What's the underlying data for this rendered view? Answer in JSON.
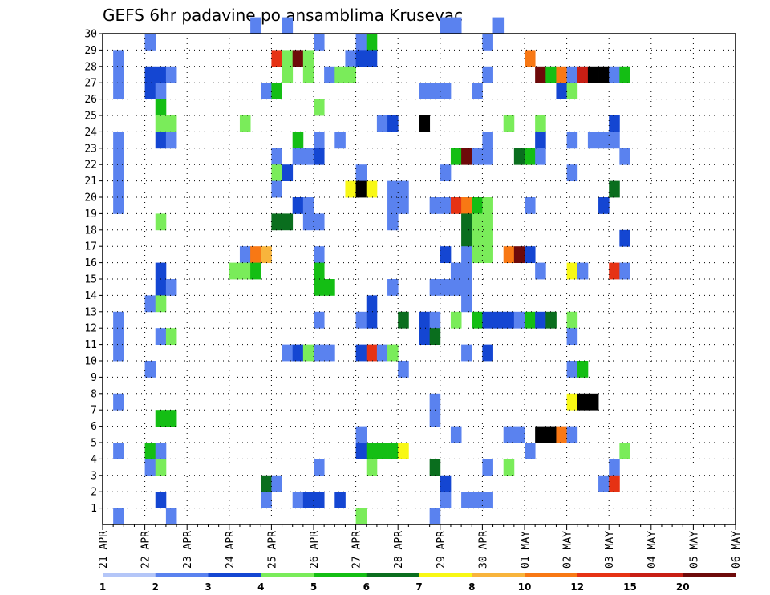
{
  "chart_data": {
    "type": "heatmap",
    "title": "GEFS 6hr padavine po ansamblima Krusevac",
    "x_tick_labels": [
      "21 APR",
      "22 APR",
      "23 APR",
      "24 APR",
      "25 APR",
      "26 APR",
      "27 APR",
      "28 APR",
      "29 APR",
      "30 APR",
      "01 MAY",
      "02 MAY",
      "03 MAY",
      "04 MAY",
      "05 MAY",
      "06 MAY"
    ],
    "y_tick_labels": [
      "1",
      "2",
      "3",
      "4",
      "5",
      "6",
      "7",
      "8",
      "9",
      "10",
      "11",
      "12",
      "13",
      "14",
      "15",
      "16",
      "17",
      "18",
      "19",
      "20",
      "21",
      "22",
      "23",
      "24",
      "25",
      "26",
      "27",
      "28",
      "29",
      "30"
    ],
    "y_range": [
      0,
      30
    ],
    "steps_per_day": 4,
    "grid": true,
    "legend": {
      "placement": "bottom",
      "levels": [
        "1",
        "2",
        "3",
        "4",
        "5",
        "6",
        "7",
        "8",
        "10",
        "12",
        "15",
        "20"
      ],
      "colors": [
        "#b4c6f8",
        "#5a82ef",
        "#1446d2",
        "#7aec5a",
        "#14be14",
        "#0a6e1e",
        "#f8f814",
        "#f8b43c",
        "#f87814",
        "#e63214",
        "#c81e14",
        "#6e0a0a"
      ]
    },
    "cells": [
      [
        1,
        20,
        1
      ],
      [
        1,
        22,
        1
      ],
      [
        1,
        23,
        1
      ],
      [
        1,
        26,
        1
      ],
      [
        1,
        27,
        1
      ],
      [
        1,
        28,
        1
      ],
      [
        1,
        19,
        1
      ],
      [
        1,
        21,
        1
      ],
      [
        1,
        10,
        1
      ],
      [
        1,
        11,
        1
      ],
      [
        1,
        12,
        1
      ],
      [
        1,
        7,
        1
      ],
      [
        1,
        4,
        1
      ],
      [
        1,
        0,
        1
      ],
      [
        4,
        29,
        1
      ],
      [
        4,
        27,
        2
      ],
      [
        4,
        26,
        2
      ],
      [
        4,
        13,
        1
      ],
      [
        4,
        9,
        1
      ],
      [
        4,
        4,
        4
      ],
      [
        4,
        3,
        1
      ],
      [
        5,
        27,
        2
      ],
      [
        5,
        26,
        1
      ],
      [
        5,
        25,
        4
      ],
      [
        5,
        24,
        3
      ],
      [
        5,
        23,
        2
      ],
      [
        5,
        18,
        3
      ],
      [
        5,
        15,
        2
      ],
      [
        5,
        14,
        2
      ],
      [
        5,
        13,
        3
      ],
      [
        5,
        11,
        1
      ],
      [
        5,
        6,
        4
      ],
      [
        5,
        4,
        1
      ],
      [
        5,
        3,
        3
      ],
      [
        5,
        1,
        2
      ],
      [
        6,
        27,
        1
      ],
      [
        6,
        24,
        3
      ],
      [
        6,
        23,
        1
      ],
      [
        6,
        14,
        1
      ],
      [
        6,
        11,
        3
      ],
      [
        6,
        6,
        4
      ],
      [
        6,
        0,
        1
      ],
      [
        12,
        15,
        3
      ],
      [
        13,
        24,
        3
      ],
      [
        13,
        16,
        1
      ],
      [
        13,
        15,
        3
      ],
      [
        14,
        30,
        1
      ],
      [
        14,
        16,
        8
      ],
      [
        14,
        15,
        4
      ],
      [
        15,
        26,
        1
      ],
      [
        15,
        16,
        7
      ],
      [
        15,
        1,
        1
      ],
      [
        15,
        2,
        5
      ],
      [
        16,
        28,
        9
      ],
      [
        16,
        26,
        4
      ],
      [
        16,
        22,
        1
      ],
      [
        16,
        21,
        3
      ],
      [
        16,
        20,
        1
      ],
      [
        16,
        18,
        5
      ],
      [
        16,
        2,
        1
      ],
      [
        17,
        30,
        1
      ],
      [
        17,
        28,
        3
      ],
      [
        17,
        27,
        3
      ],
      [
        17,
        21,
        2
      ],
      [
        17,
        18,
        5
      ],
      [
        17,
        10,
        1
      ],
      [
        18,
        28,
        11
      ],
      [
        18,
        23,
        4
      ],
      [
        18,
        22,
        1
      ],
      [
        18,
        19,
        2
      ],
      [
        18,
        10,
        2
      ],
      [
        18,
        1,
        1
      ],
      [
        19,
        28,
        3
      ],
      [
        19,
        27,
        3
      ],
      [
        19,
        22,
        1
      ],
      [
        19,
        19,
        1
      ],
      [
        19,
        18,
        1
      ],
      [
        19,
        10,
        3
      ],
      [
        19,
        1,
        2
      ],
      [
        20,
        29,
        1
      ],
      [
        20,
        25,
        3
      ],
      [
        20,
        23,
        1
      ],
      [
        20,
        22,
        2
      ],
      [
        20,
        18,
        1
      ],
      [
        20,
        16,
        1
      ],
      [
        20,
        15,
        4
      ],
      [
        20,
        14,
        4
      ],
      [
        20,
        12,
        1
      ],
      [
        20,
        10,
        1
      ],
      [
        20,
        3,
        1
      ],
      [
        20,
        1,
        2
      ],
      [
        21,
        27,
        1
      ],
      [
        21,
        14,
        4
      ],
      [
        21,
        10,
        1
      ],
      [
        22,
        27,
        3
      ],
      [
        22,
        23,
        1
      ],
      [
        22,
        1,
        2
      ],
      [
        23,
        28,
        1
      ],
      [
        23,
        27,
        3
      ],
      [
        23,
        20,
        6
      ],
      [
        24,
        29,
        1
      ],
      [
        24,
        28,
        2
      ],
      [
        24,
        21,
        1
      ],
      [
        24,
        20,
        13
      ],
      [
        24,
        12,
        1
      ],
      [
        24,
        10,
        2
      ],
      [
        24,
        5,
        1
      ],
      [
        24,
        4,
        2
      ],
      [
        24,
        0,
        3
      ],
      [
        25,
        29,
        4
      ],
      [
        25,
        28,
        2
      ],
      [
        25,
        20,
        6
      ],
      [
        25,
        13,
        2
      ],
      [
        25,
        12,
        2
      ],
      [
        25,
        10,
        9
      ],
      [
        25,
        4,
        4
      ],
      [
        25,
        3,
        3
      ],
      [
        26,
        24,
        1
      ],
      [
        26,
        10,
        1
      ],
      [
        26,
        4,
        4
      ],
      [
        27,
        24,
        2
      ],
      [
        27,
        20,
        1
      ],
      [
        27,
        19,
        1
      ],
      [
        27,
        18,
        1
      ],
      [
        27,
        14,
        1
      ],
      [
        27,
        10,
        3
      ],
      [
        27,
        4,
        4
      ],
      [
        28,
        20,
        1
      ],
      [
        28,
        19,
        1
      ],
      [
        28,
        12,
        5
      ],
      [
        28,
        9,
        1
      ],
      [
        28,
        4,
        6
      ],
      [
        30,
        26,
        1
      ],
      [
        30,
        24,
        12
      ],
      [
        30,
        12,
        2
      ],
      [
        30,
        11,
        2
      ],
      [
        31,
        26,
        1
      ],
      [
        31,
        19,
        1
      ],
      [
        31,
        14,
        1
      ],
      [
        31,
        12,
        1
      ],
      [
        31,
        11,
        5
      ],
      [
        31,
        7,
        1
      ],
      [
        31,
        6,
        1
      ],
      [
        31,
        3,
        5
      ],
      [
        31,
        0,
        1
      ],
      [
        32,
        30,
        1
      ],
      [
        32,
        26,
        1
      ],
      [
        32,
        21,
        1
      ],
      [
        32,
        19,
        1
      ],
      [
        32,
        16,
        2
      ],
      [
        32,
        14,
        1
      ],
      [
        32,
        2,
        2
      ],
      [
        32,
        1,
        1
      ],
      [
        33,
        30,
        1
      ],
      [
        33,
        22,
        4
      ],
      [
        33,
        19,
        9
      ],
      [
        33,
        15,
        1
      ],
      [
        33,
        14,
        1
      ],
      [
        33,
        12,
        3
      ],
      [
        33,
        5,
        1
      ],
      [
        34,
        22,
        11
      ],
      [
        34,
        19,
        8
      ],
      [
        34,
        18,
        5
      ],
      [
        34,
        17,
        5
      ],
      [
        34,
        16,
        1
      ],
      [
        34,
        15,
        1
      ],
      [
        34,
        14,
        1
      ],
      [
        34,
        13,
        1
      ],
      [
        34,
        10,
        1
      ],
      [
        34,
        1,
        1
      ],
      [
        35,
        26,
        1
      ],
      [
        35,
        22,
        1
      ],
      [
        35,
        19,
        4
      ],
      [
        35,
        18,
        3
      ],
      [
        35,
        17,
        3
      ],
      [
        35,
        16,
        3
      ],
      [
        35,
        12,
        4
      ],
      [
        35,
        1,
        1
      ],
      [
        36,
        29,
        1
      ],
      [
        36,
        27,
        1
      ],
      [
        36,
        23,
        1
      ],
      [
        36,
        22,
        1
      ],
      [
        36,
        19,
        3
      ],
      [
        36,
        18,
        3
      ],
      [
        36,
        17,
        3
      ],
      [
        36,
        16,
        3
      ],
      [
        36,
        12,
        2
      ],
      [
        36,
        10,
        2
      ],
      [
        36,
        3,
        1
      ],
      [
        36,
        1,
        1
      ],
      [
        37,
        12,
        2
      ],
      [
        37,
        30,
        1
      ],
      [
        38,
        24,
        3
      ],
      [
        38,
        16,
        8
      ],
      [
        38,
        12,
        2
      ],
      [
        38,
        5,
        1
      ],
      [
        38,
        3,
        3
      ],
      [
        39,
        22,
        5
      ],
      [
        39,
        16,
        11
      ],
      [
        39,
        12,
        1
      ],
      [
        39,
        5,
        1
      ],
      [
        40,
        28,
        8
      ],
      [
        40,
        22,
        4
      ],
      [
        40,
        19,
        1
      ],
      [
        40,
        16,
        2
      ],
      [
        40,
        12,
        4
      ],
      [
        40,
        4,
        1
      ],
      [
        41,
        27,
        11
      ],
      [
        41,
        24,
        3
      ],
      [
        41,
        23,
        2
      ],
      [
        41,
        22,
        1
      ],
      [
        41,
        15,
        1
      ],
      [
        41,
        12,
        2
      ],
      [
        41,
        5,
        12
      ],
      [
        42,
        27,
        4
      ],
      [
        42,
        12,
        5
      ],
      [
        42,
        5,
        12
      ],
      [
        43,
        27,
        8
      ],
      [
        43,
        26,
        2
      ],
      [
        43,
        5,
        8
      ],
      [
        44,
        27,
        1
      ],
      [
        44,
        26,
        3
      ],
      [
        44,
        23,
        1
      ],
      [
        44,
        21,
        1
      ],
      [
        44,
        15,
        6
      ],
      [
        44,
        12,
        3
      ],
      [
        44,
        11,
        1
      ],
      [
        44,
        9,
        1
      ],
      [
        44,
        7,
        6
      ],
      [
        44,
        5,
        1
      ],
      [
        45,
        27,
        10
      ],
      [
        45,
        15,
        1
      ],
      [
        45,
        9,
        4
      ],
      [
        45,
        7,
        12
      ],
      [
        46,
        27,
        12
      ],
      [
        46,
        23,
        1
      ],
      [
        46,
        7,
        13
      ],
      [
        47,
        27,
        12
      ],
      [
        47,
        23,
        1
      ],
      [
        47,
        19,
        2
      ],
      [
        47,
        2,
        1
      ],
      [
        48,
        27,
        1
      ],
      [
        48,
        20,
        5
      ],
      [
        48,
        24,
        2
      ],
      [
        48,
        15,
        9
      ],
      [
        48,
        23,
        1
      ],
      [
        48,
        3,
        1
      ],
      [
        48,
        2,
        9
      ],
      [
        49,
        27,
        4
      ],
      [
        49,
        22,
        1
      ],
      [
        49,
        17,
        2
      ],
      [
        49,
        15,
        1
      ],
      [
        49,
        4,
        3
      ]
    ]
  }
}
